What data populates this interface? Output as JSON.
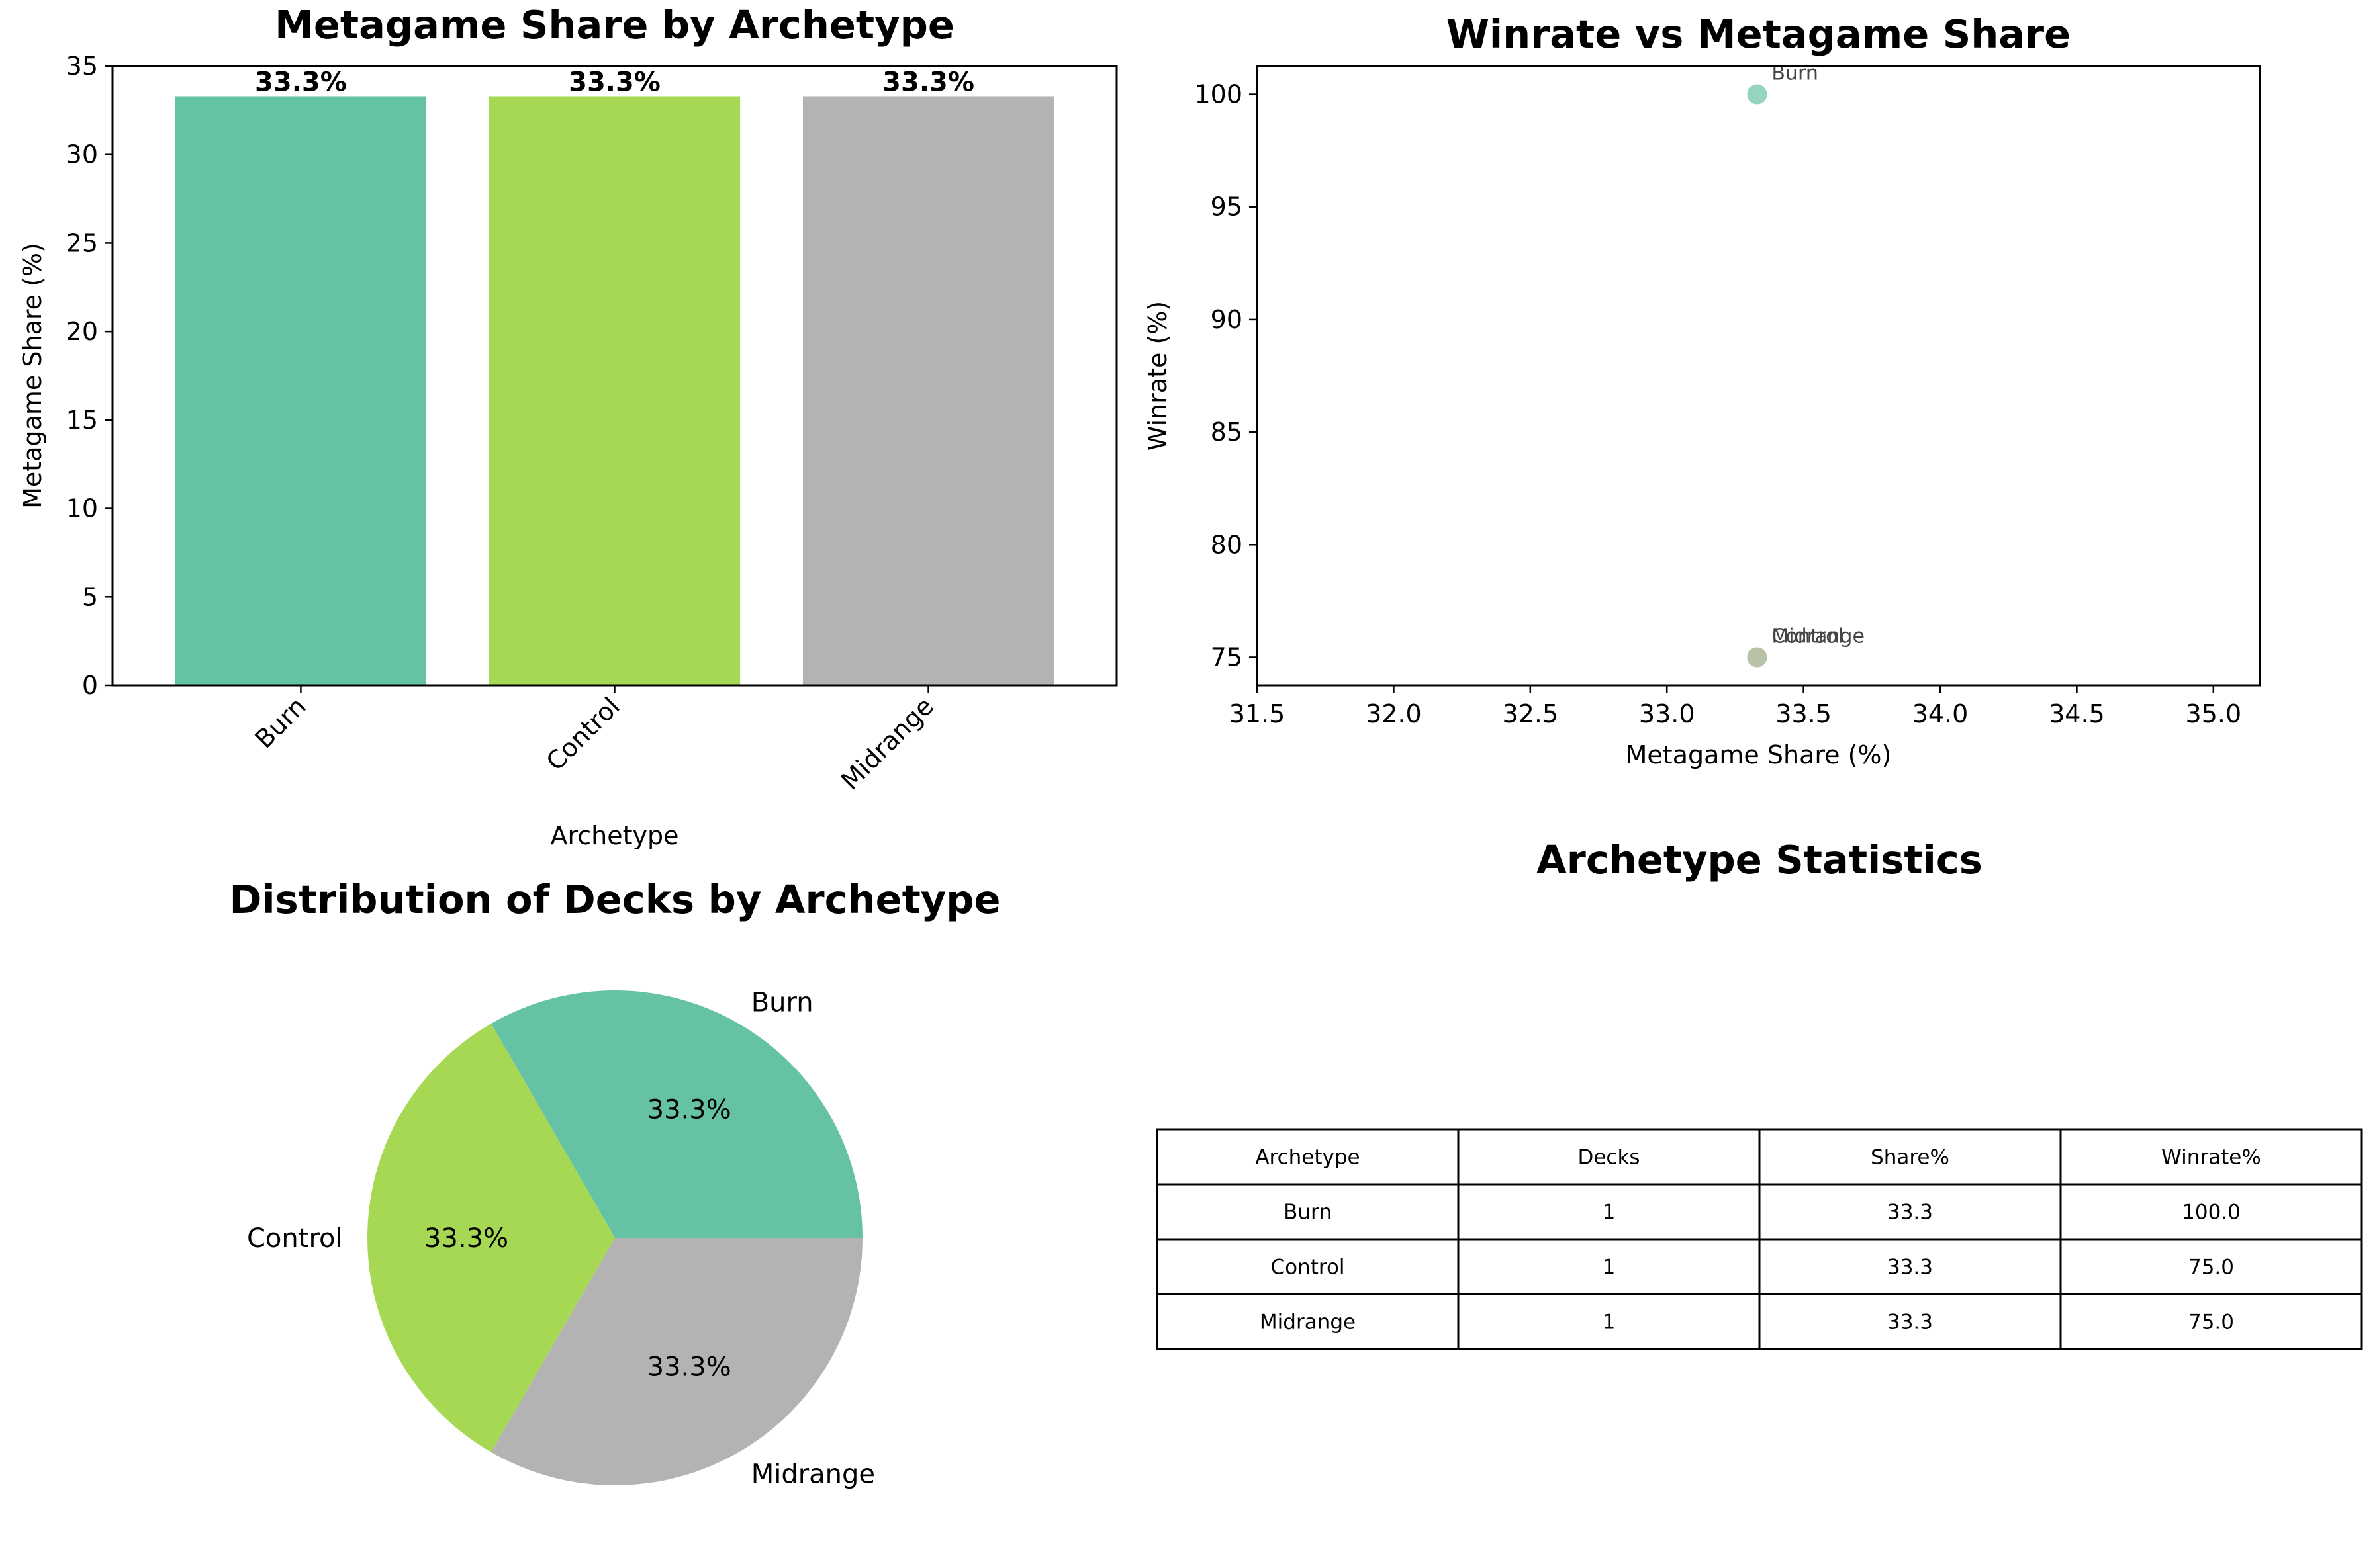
{
  "colors": {
    "Burn": "#66c2a5",
    "Control": "#a6d854",
    "Midrange": "#b3b3b3"
  },
  "chart_data": [
    {
      "type": "bar",
      "title": "Metagame Share by Archetype",
      "xlabel": "Archetype",
      "ylabel": "Metagame Share (%)",
      "categories": [
        "Burn",
        "Control",
        "Midrange"
      ],
      "values": [
        33.3,
        33.3,
        33.3
      ],
      "value_labels": [
        "33.3%",
        "33.3%",
        "33.3%"
      ],
      "ylim": [
        0,
        35
      ],
      "yticks": [
        "0",
        "5",
        "10",
        "15",
        "20",
        "25",
        "30",
        "35"
      ],
      "grid": false
    },
    {
      "type": "scatter",
      "title": "Winrate vs Metagame Share",
      "xlabel": "Metagame Share (%)",
      "ylabel": "Winrate (%)",
      "points": [
        {
          "label": "Burn",
          "x": 33.33,
          "y": 100.0
        },
        {
          "label": "Control",
          "x": 33.33,
          "y": 75.0
        },
        {
          "label": "Midrange",
          "x": 33.33,
          "y": 75.0
        }
      ],
      "xlim": [
        31.5,
        35.17
      ],
      "ylim": [
        73.75,
        101.25
      ],
      "xticks": [
        "31.5",
        "32.0",
        "32.5",
        "33.0",
        "33.5",
        "34.0",
        "34.5",
        "35.0"
      ],
      "yticks": [
        "75",
        "80",
        "85",
        "90",
        "95",
        "100"
      ],
      "grid": false
    },
    {
      "type": "pie",
      "title": "Distribution of Decks by Archetype",
      "labels": [
        "Burn",
        "Control",
        "Midrange"
      ],
      "values": [
        1,
        1,
        1
      ],
      "pct_labels": [
        "33.3%",
        "33.3%",
        "33.3%"
      ]
    },
    {
      "type": "table",
      "title": "Archetype Statistics",
      "columns": [
        "Archetype",
        "Decks",
        "Share%",
        "Winrate%"
      ],
      "rows": [
        [
          "Burn",
          "1",
          "33.3",
          "100.0"
        ],
        [
          "Control",
          "1",
          "33.3",
          "75.0"
        ],
        [
          "Midrange",
          "1",
          "33.3",
          "75.0"
        ]
      ]
    }
  ]
}
